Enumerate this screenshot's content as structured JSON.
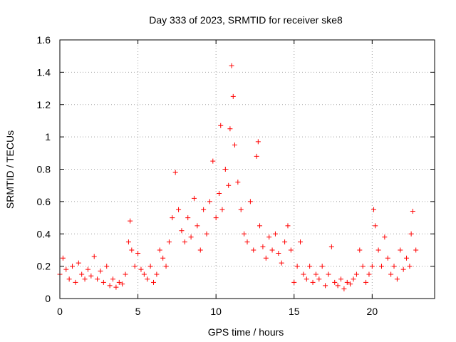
{
  "chart_data": {
    "type": "scatter",
    "title": "Day 333 of 2023, SRMTID for receiver ske8",
    "xlabel": "GPS time / hours",
    "ylabel": "SRMTID / TECUs",
    "xlim": [
      0,
      24
    ],
    "ylim": [
      0,
      1.6
    ],
    "xticks": [
      0,
      5,
      10,
      15,
      20
    ],
    "xtick_labels": [
      "0",
      "5",
      "10",
      "15",
      "20"
    ],
    "yticks": [
      0,
      0.2,
      0.4,
      0.6,
      0.8,
      1,
      1.2,
      1.4,
      1.6
    ],
    "ytick_labels": [
      "0",
      "0.2",
      "0.4",
      "0.6",
      "0.8",
      "1",
      "1.2",
      "1.4",
      "1.6"
    ],
    "grid": true,
    "marker": "+",
    "color": "#ff0000",
    "series": [
      {
        "name": "SRMTID",
        "x": [
          0.0,
          0.2,
          0.4,
          0.6,
          0.8,
          1.0,
          1.2,
          1.4,
          1.6,
          1.8,
          2.0,
          2.2,
          2.4,
          2.6,
          2.8,
          3.0,
          3.2,
          3.4,
          3.6,
          3.8,
          4.0,
          4.2,
          4.4,
          4.5,
          4.6,
          4.8,
          5.0,
          5.2,
          5.4,
          5.6,
          5.8,
          6.0,
          6.2,
          6.4,
          6.6,
          6.8,
          7.0,
          7.2,
          7.4,
          7.6,
          7.8,
          8.0,
          8.2,
          8.4,
          8.6,
          8.8,
          9.0,
          9.2,
          9.4,
          9.6,
          9.8,
          10.0,
          10.2,
          10.3,
          10.4,
          10.6,
          10.8,
          10.9,
          11.0,
          11.1,
          11.2,
          11.4,
          11.6,
          11.8,
          12.0,
          12.2,
          12.4,
          12.6,
          12.7,
          12.8,
          13.0,
          13.2,
          13.4,
          13.6,
          13.8,
          14.0,
          14.2,
          14.4,
          14.6,
          14.8,
          15.0,
          15.2,
          15.4,
          15.6,
          15.8,
          16.0,
          16.2,
          16.4,
          16.6,
          16.8,
          17.0,
          17.2,
          17.4,
          17.6,
          17.8,
          18.0,
          18.2,
          18.4,
          18.6,
          18.8,
          19.0,
          19.2,
          19.4,
          19.6,
          19.8,
          20.0,
          20.1,
          20.2,
          20.4,
          20.6,
          20.8,
          21.0,
          21.2,
          21.4,
          21.6,
          21.8,
          22.0,
          22.2,
          22.4,
          22.5,
          22.6,
          22.8
        ],
        "y": [
          0.15,
          0.25,
          0.18,
          0.12,
          0.2,
          0.1,
          0.22,
          0.15,
          0.12,
          0.18,
          0.14,
          0.26,
          0.12,
          0.17,
          0.1,
          0.2,
          0.08,
          0.12,
          0.07,
          0.1,
          0.09,
          0.15,
          0.35,
          0.48,
          0.3,
          0.2,
          0.28,
          0.18,
          0.15,
          0.12,
          0.2,
          0.1,
          0.15,
          0.3,
          0.25,
          0.2,
          0.35,
          0.5,
          0.78,
          0.55,
          0.42,
          0.35,
          0.5,
          0.38,
          0.62,
          0.45,
          0.3,
          0.55,
          0.4,
          0.6,
          0.85,
          0.5,
          0.65,
          1.07,
          0.55,
          0.8,
          0.7,
          1.05,
          1.44,
          1.25,
          0.95,
          0.72,
          0.55,
          0.4,
          0.35,
          0.6,
          0.3,
          0.88,
          0.97,
          0.45,
          0.32,
          0.25,
          0.38,
          0.3,
          0.4,
          0.28,
          0.22,
          0.35,
          0.45,
          0.3,
          0.1,
          0.2,
          0.35,
          0.15,
          0.12,
          0.2,
          0.1,
          0.15,
          0.12,
          0.2,
          0.08,
          0.15,
          0.32,
          0.1,
          0.08,
          0.12,
          0.06,
          0.1,
          0.09,
          0.12,
          0.15,
          0.3,
          0.2,
          0.1,
          0.15,
          0.2,
          0.55,
          0.45,
          0.3,
          0.2,
          0.38,
          0.25,
          0.15,
          0.2,
          0.12,
          0.3,
          0.18,
          0.25,
          0.2,
          0.4,
          0.54,
          0.3
        ]
      }
    ]
  }
}
